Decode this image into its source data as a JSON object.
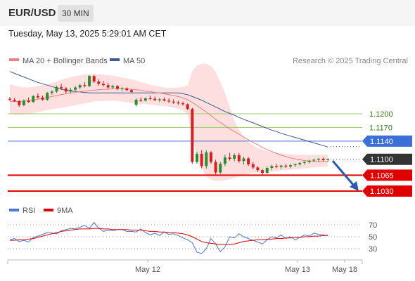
{
  "header": {
    "pair": "EUR/USD",
    "timeframe": "30 MIN"
  },
  "datetime": "Tuesday, May 13, 2025 5:29:01 AM CET",
  "legend": {
    "ma20": "MA 20 + Bollinger Bands",
    "ma50": "MA 50",
    "research": "Research © 2025 Trading Central"
  },
  "rsi_legend": {
    "rsi": "RSI",
    "ma9": "9MA"
  },
  "colors": {
    "ma20": "#f08080",
    "ma50": "#3a5a9a",
    "band": "#fcd4d4",
    "up": "#2e8b2e",
    "down": "#d02020",
    "res": "#9acd6a",
    "pivot": "#3b6fd8",
    "sup": "#e00000",
    "arrow": "#2a5aa8"
  },
  "chart_data": [
    {
      "type": "candlestick",
      "x_labels": [
        "May 12",
        "May 13",
        "May 18"
      ],
      "levels": [
        {
          "value": 1.12,
          "label": "1.1200",
          "kind": "resistance"
        },
        {
          "value": 1.117,
          "label": "1.1170",
          "kind": "resistance"
        },
        {
          "value": 1.114,
          "label": "1.1140",
          "kind": "pivot"
        },
        {
          "value": 1.11,
          "label": "1.1100",
          "kind": "current"
        },
        {
          "value": 1.1065,
          "label": "1.1065",
          "kind": "support"
        },
        {
          "value": 1.103,
          "label": "1.1030",
          "kind": "support"
        }
      ],
      "candles": [
        [
          1.1233,
          1.1237,
          1.1228,
          1.1231
        ],
        [
          1.1231,
          1.1235,
          1.1226,
          1.1228
        ],
        [
          1.1228,
          1.123,
          1.1215,
          1.1219
        ],
        [
          1.1219,
          1.1232,
          1.1217,
          1.1229
        ],
        [
          1.1229,
          1.1236,
          1.1224,
          1.1226
        ],
        [
          1.1226,
          1.1241,
          1.1224,
          1.1239
        ],
        [
          1.1239,
          1.1245,
          1.1233,
          1.1236
        ],
        [
          1.1236,
          1.124,
          1.1229,
          1.1231
        ],
        [
          1.1231,
          1.1248,
          1.1229,
          1.1246
        ],
        [
          1.1246,
          1.1252,
          1.1242,
          1.1249
        ],
        [
          1.1249,
          1.1262,
          1.1246,
          1.1259
        ],
        [
          1.1259,
          1.1266,
          1.1253,
          1.1256
        ],
        [
          1.1256,
          1.1259,
          1.1245,
          1.1249
        ],
        [
          1.1249,
          1.1257,
          1.1245,
          1.1253
        ],
        [
          1.1253,
          1.1261,
          1.125,
          1.1258
        ],
        [
          1.1258,
          1.1266,
          1.1254,
          1.1263
        ],
        [
          1.1263,
          1.127,
          1.1258,
          1.1261
        ],
        [
          1.1261,
          1.1285,
          1.1259,
          1.1283
        ],
        [
          1.1283,
          1.1285,
          1.1268,
          1.1271
        ],
        [
          1.1271,
          1.1276,
          1.1262,
          1.1266
        ],
        [
          1.1266,
          1.1272,
          1.126,
          1.1263
        ],
        [
          1.1263,
          1.1268,
          1.1255,
          1.1258
        ],
        [
          1.1258,
          1.1264,
          1.1254,
          1.1261
        ],
        [
          1.1261,
          1.1263,
          1.1252,
          1.1255
        ],
        [
          1.1255,
          1.1259,
          1.1249,
          1.1256
        ],
        [
          1.1256,
          1.1258,
          1.125,
          1.1252
        ],
        [
          1.1252,
          1.1254,
          1.1246,
          1.1248
        ],
        [
          1.122,
          1.1234,
          1.1216,
          1.1231
        ],
        [
          1.1231,
          1.1236,
          1.1226,
          1.1229
        ],
        [
          1.1229,
          1.1236,
          1.1227,
          1.1234
        ],
        [
          1.1234,
          1.124,
          1.123,
          1.1233
        ],
        [
          1.1233,
          1.1238,
          1.1228,
          1.123
        ],
        [
          1.123,
          1.1235,
          1.1226,
          1.1232
        ],
        [
          1.1232,
          1.1236,
          1.1227,
          1.1229
        ],
        [
          1.1229,
          1.1234,
          1.1224,
          1.1227
        ],
        [
          1.1227,
          1.1232,
          1.1222,
          1.1225
        ],
        [
          1.1225,
          1.1229,
          1.122,
          1.1223
        ],
        [
          1.1223,
          1.1227,
          1.1218,
          1.1221
        ],
        [
          1.1221,
          1.1223,
          1.1208,
          1.1211
        ],
        [
          1.1211,
          1.1213,
          1.109,
          1.1094
        ],
        [
          1.1094,
          1.1117,
          1.109,
          1.1112
        ],
        [
          1.1112,
          1.112,
          1.108,
          1.1085
        ],
        [
          1.1085,
          1.112,
          1.1079,
          1.1115
        ],
        [
          1.1115,
          1.1118,
          1.109,
          1.1094
        ],
        [
          1.1094,
          1.1099,
          1.1065,
          1.1071
        ],
        [
          1.1071,
          1.1094,
          1.1068,
          1.109
        ],
        [
          1.109,
          1.111,
          1.1085,
          1.1104
        ],
        [
          1.1104,
          1.1114,
          1.1097,
          1.1101
        ],
        [
          1.1101,
          1.1113,
          1.1096,
          1.1109
        ],
        [
          1.1109,
          1.1114,
          1.1092,
          1.1096
        ],
        [
          1.1096,
          1.1106,
          1.1088,
          1.1102
        ],
        [
          1.1102,
          1.1105,
          1.1085,
          1.1089
        ],
        [
          1.1089,
          1.1094,
          1.1078,
          1.1082
        ],
        [
          1.1082,
          1.1085,
          1.1072,
          1.1076
        ],
        [
          1.1076,
          1.1078,
          1.1066,
          1.107
        ],
        [
          1.107,
          1.1084,
          1.1068,
          1.1081
        ],
        [
          1.1081,
          1.1088,
          1.1076,
          1.1085
        ],
        [
          1.1085,
          1.109,
          1.108,
          1.1083
        ],
        [
          1.1083,
          1.1088,
          1.1079,
          1.1086
        ],
        [
          1.1086,
          1.1089,
          1.1081,
          1.1084
        ],
        [
          1.1084,
          1.109,
          1.108,
          1.1087
        ],
        [
          1.1087,
          1.1091,
          1.1083,
          1.1089
        ],
        [
          1.1089,
          1.1094,
          1.1086,
          1.1092
        ],
        [
          1.1092,
          1.1096,
          1.1088,
          1.1094
        ],
        [
          1.1094,
          1.1099,
          1.1091,
          1.1097
        ],
        [
          1.1097,
          1.1101,
          1.1094,
          1.1099
        ],
        [
          1.1099,
          1.1103,
          1.1095,
          1.1101
        ],
        [
          1.1101,
          1.1104,
          1.1096,
          1.1098
        ],
        [
          1.1098,
          1.1102,
          1.1095,
          1.11
        ]
      ],
      "ma20": [
        1.1227,
        1.1227,
        1.1227,
        1.1228,
        1.1229,
        1.123,
        1.1232,
        1.1234,
        1.1236,
        1.1238,
        1.124,
        1.1242,
        1.1244,
        1.1246,
        1.1247,
        1.1249,
        1.125,
        1.1251,
        1.1252,
        1.1253,
        1.1254,
        1.1254,
        1.1255,
        1.1255,
        1.1255,
        1.1255,
        1.1254,
        1.1253,
        1.1252,
        1.125,
        1.1249,
        1.1247,
        1.1246,
        1.1244,
        1.1242,
        1.124,
        1.1238,
        1.1235,
        1.1231,
        1.1225,
        1.1218,
        1.1211,
        1.1204,
        1.1196,
        1.1188,
        1.1181,
        1.1174,
        1.1167,
        1.1161,
        1.1155,
        1.1149,
        1.1143,
        1.1137,
        1.1132,
        1.1126,
        1.1121,
        1.1117,
        1.1113,
        1.1109,
        1.1106,
        1.1103,
        1.1101,
        1.1099,
        1.1097,
        1.1096,
        1.1095,
        1.1095,
        1.1095,
        1.1095
      ],
      "band_upper": [
        1.1265,
        1.1262,
        1.126,
        1.1258,
        1.1258,
        1.1259,
        1.1261,
        1.1263,
        1.1265,
        1.1268,
        1.1271,
        1.1275,
        1.1278,
        1.1281,
        1.1283,
        1.1285,
        1.1286,
        1.1287,
        1.1287,
        1.1287,
        1.1286,
        1.1285,
        1.1284,
        1.1282,
        1.128,
        1.1278,
        1.1276,
        1.1273,
        1.127,
        1.1267,
        1.1264,
        1.1262,
        1.126,
        1.1258,
        1.1257,
        1.1257,
        1.1258,
        1.126,
        1.1262,
        1.1294,
        1.1306,
        1.131,
        1.131,
        1.1305,
        1.1292,
        1.127,
        1.1245,
        1.1215,
        1.1185,
        1.1165,
        1.115,
        1.1138,
        1.113,
        1.1125,
        1.1121,
        1.1118,
        1.1116,
        1.1114,
        1.1113,
        1.1112,
        1.1111,
        1.111,
        1.111,
        1.111,
        1.111,
        1.111,
        1.111,
        1.111,
        1.111
      ],
      "band_lower": [
        1.12,
        1.1198,
        1.1197,
        1.1198,
        1.12,
        1.1202,
        1.1204,
        1.1206,
        1.1208,
        1.121,
        1.1212,
        1.1213,
        1.1215,
        1.1217,
        1.1219,
        1.1221,
        1.1223,
        1.1225,
        1.1227,
        1.1228,
        1.1228,
        1.1229,
        1.1229,
        1.1228,
        1.1227,
        1.1226,
        1.1224,
        1.1223,
        1.1222,
        1.1221,
        1.122,
        1.1219,
        1.1218,
        1.1217,
        1.1216,
        1.1214,
        1.1211,
        1.1207,
        1.12,
        1.115,
        1.1105,
        1.108,
        1.1062,
        1.1055,
        1.1052,
        1.1052,
        1.1054,
        1.1056,
        1.1059,
        1.1062,
        1.1066,
        1.1068,
        1.107,
        1.1071,
        1.1071,
        1.1072,
        1.1073,
        1.1074,
        1.1075,
        1.1076,
        1.1077,
        1.1078,
        1.1079,
        1.108,
        1.1081,
        1.1082,
        1.1083,
        1.1083,
        1.1084
      ],
      "ma50": [
        1.1293,
        1.1289,
        1.1285,
        1.1281,
        1.1277,
        1.1273,
        1.1269,
        1.1266,
        1.1263,
        1.126,
        1.1257,
        1.1254,
        1.1252,
        1.125,
        1.1249,
        1.1248,
        1.1247,
        1.1246,
        1.1246,
        1.1246,
        1.1246,
        1.1246,
        1.1246,
        1.1246,
        1.1246,
        1.1246,
        1.1246,
        1.1246,
        1.1246,
        1.1246,
        1.1246,
        1.1246,
        1.1246,
        1.1246,
        1.1246,
        1.1246,
        1.1246,
        1.1244,
        1.1242,
        1.1238,
        1.1234,
        1.123,
        1.1225,
        1.122,
        1.1215,
        1.121,
        1.1205,
        1.1201,
        1.1197,
        1.1192,
        1.1188,
        1.1184,
        1.118,
        1.1176,
        1.1172,
        1.1168,
        1.1164,
        1.1161,
        1.1157,
        1.1154,
        1.1151,
        1.1148,
        1.1145,
        1.1142,
        1.1139,
        1.1136,
        1.1133,
        1.113,
        1.1127
      ]
    },
    {
      "type": "line",
      "title": "RSI",
      "y_ticks": [
        70,
        50,
        30
      ],
      "ylim": [
        10,
        85
      ],
      "rsi": [
        45,
        47,
        42,
        44,
        41,
        49,
        51,
        54,
        57,
        56,
        55,
        60,
        62,
        64,
        63,
        66,
        69,
        64,
        74,
        64,
        59,
        61,
        60,
        62,
        62,
        59,
        59,
        58,
        63,
        57,
        53,
        56,
        52,
        58,
        54,
        55,
        52,
        48,
        45,
        40,
        24,
        22,
        30,
        47,
        38,
        25,
        33,
        50,
        48,
        55,
        50,
        47,
        44,
        41,
        38,
        45,
        50,
        48,
        53,
        47,
        50,
        45,
        49,
        53,
        51,
        56,
        54,
        53,
        52
      ],
      "ma9": [
        44,
        44,
        45,
        45,
        46,
        47,
        49,
        51,
        53,
        55,
        57,
        59,
        60,
        61,
        62,
        63,
        63,
        63,
        64,
        64,
        63,
        63,
        62,
        62,
        62,
        62,
        61,
        61,
        61,
        60,
        59,
        59,
        58,
        58,
        57,
        57,
        56,
        55,
        53,
        50,
        46,
        42,
        40,
        39,
        38,
        37,
        37,
        37,
        38,
        40,
        42,
        43,
        44,
        45,
        45,
        46,
        46,
        47,
        47,
        48,
        48,
        49,
        49,
        50,
        50,
        51,
        51,
        52,
        52
      ]
    }
  ]
}
